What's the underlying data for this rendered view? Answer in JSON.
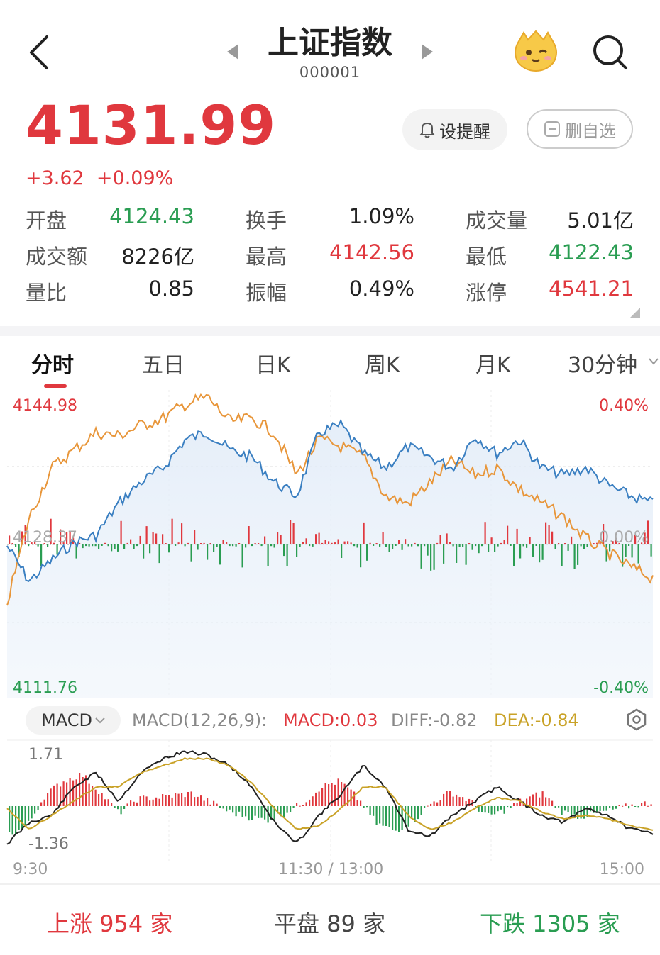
{
  "header": {
    "title": "上证指数",
    "code": "000001",
    "icons": {
      "back": "back-arrow-icon",
      "prev": "prev-stock-icon",
      "next": "next-stock-icon",
      "mascot": "mascot-icon",
      "search": "search-icon"
    }
  },
  "quote": {
    "price": "4131.99",
    "change": "+3.62",
    "change_pct": "+0.09%"
  },
  "actions": {
    "alarm_label": "设提醒",
    "remove_fav_label": "删自选"
  },
  "stats": [
    {
      "label": "开盘",
      "value": "4124.43",
      "color": "green"
    },
    {
      "label": "换手",
      "value": "1.09%",
      "color": "black"
    },
    {
      "label": "成交量",
      "value": "5.01亿",
      "color": "black"
    },
    {
      "label": "成交额",
      "value": "8226亿",
      "color": "black"
    },
    {
      "label": "最高",
      "value": "4142.56",
      "color": "red"
    },
    {
      "label": "最低",
      "value": "4122.43",
      "color": "green"
    },
    {
      "label": "量比",
      "value": "0.85",
      "color": "black"
    },
    {
      "label": "振幅",
      "value": "0.49%",
      "color": "black"
    },
    {
      "label": "涨停",
      "value": "4541.21",
      "color": "red"
    }
  ],
  "tabs": [
    "分时",
    "五日",
    "日K",
    "周K",
    "月K",
    "30分钟"
  ],
  "active_tab": "分时",
  "chart": {
    "price_high": "4144.98",
    "price_mid": "4128.37",
    "price_low": "4111.76",
    "pct_high": "0.40%",
    "pct_mid": "0.00%",
    "pct_low": "-0.40%",
    "colors": {
      "index_line": "#3a7fc1",
      "overlay_line": "#e8963a",
      "up": "#e0383e",
      "down": "#2a9d52"
    }
  },
  "macd": {
    "selector": "MACD",
    "params": "MACD(12,26,9):",
    "macd": "MACD:0.03",
    "diff": "DIFF:-0.82",
    "dea": "DEA:-0.84",
    "ymax": "1.71",
    "ymin": "-1.36"
  },
  "time_axis": {
    "start": "9:30",
    "mid": "11:30 / 13:00",
    "end": "15:00"
  },
  "breadth": {
    "up": "上涨 954 家",
    "flat": "平盘 89 家",
    "down": "下跌 1305 家"
  }
}
